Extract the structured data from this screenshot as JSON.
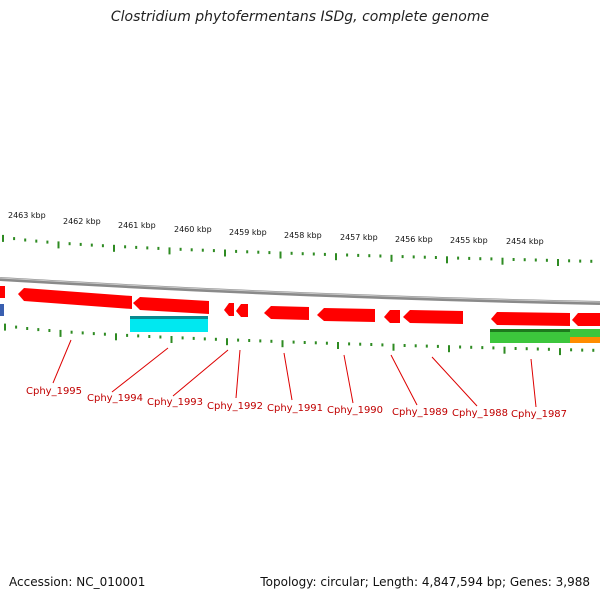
{
  "title": "Clostridium phytofermentans ISDg, complete genome",
  "footer": {
    "accession": "Accession: NC_010001",
    "summary": "Topology: circular; Length: 4,847,594 bp; Genes: 3,988"
  },
  "colors": {
    "backbone": "#8a8a8a",
    "ticks": "#2e8b22",
    "cds_forward": "#ff0000",
    "rna_cyan": "#00e8f0",
    "rna_green": "#3cc63c",
    "orange": "#ff8c00",
    "blue": "#3a5fb0",
    "label": "#c00000"
  },
  "kbp_labels": [
    "2463 kbp",
    "2462 kbp",
    "2461 kbp",
    "2460 kbp",
    "2459 kbp",
    "2458 kbp",
    "2457 kbp",
    "2456 kbp",
    "2455 kbp",
    "2454 kbp"
  ],
  "gene_labels": [
    "Cphy_1995",
    "Cphy_1994",
    "Cphy_1993",
    "Cphy_1992",
    "Cphy_1991",
    "Cphy_1990",
    "Cphy_1989",
    "Cphy_1988",
    "Cphy_1987"
  ]
}
